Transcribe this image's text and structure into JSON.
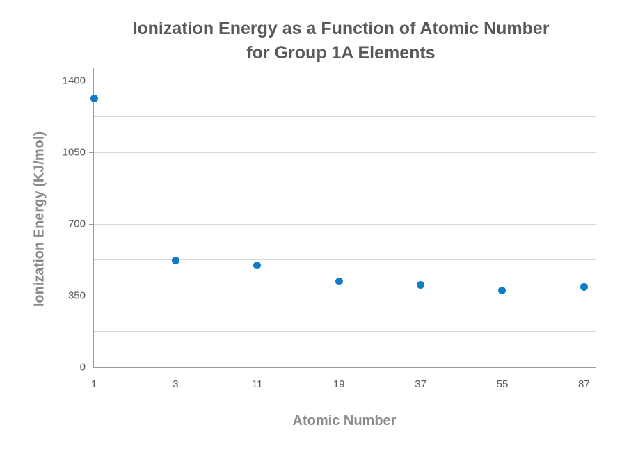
{
  "chart_data": {
    "type": "scatter",
    "title": "Ionization Energy as a Function of Atomic Number for Group 1A Elements",
    "title_lines": [
      "Ionization Energy as a Function of Atomic Number",
      "for Group 1A Elements"
    ],
    "xlabel": "Atomic Number",
    "ylabel": "Ionization Energy (KJ/mol)",
    "categories": [
      "1",
      "3",
      "11",
      "19",
      "37",
      "55",
      "87"
    ],
    "values": [
      1312,
      520,
      496,
      419,
      403,
      376,
      393
    ],
    "y_tick_labels": [
      0,
      350,
      700,
      1050,
      1400
    ],
    "y_gridlines": [
      175,
      350,
      525,
      700,
      875,
      1050,
      1225,
      1400
    ],
    "ylim": [
      0,
      1460
    ],
    "grid": true,
    "legend": false
  },
  "colors": {
    "marker": "#0D7CC9",
    "grid": "#D8D8D8",
    "axis": "#9B9B9B",
    "tick_label": "#595959",
    "title": "#595959",
    "axis_title": "#8A8A8A"
  }
}
